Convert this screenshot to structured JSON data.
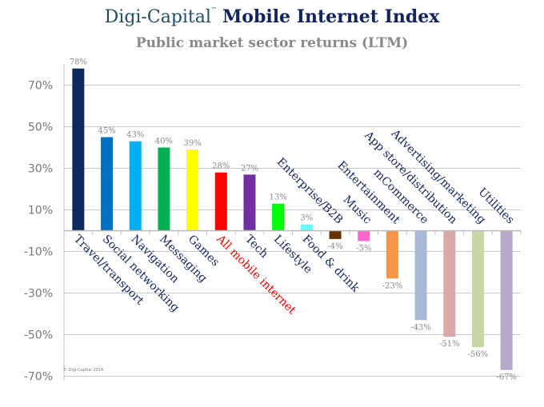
{
  "title": {
    "brand": "Digi-Capital",
    "trademark": "™",
    "rest": "Mobile Internet Index"
  },
  "subtitle": "Public market sector returns (LTM)",
  "footnote": "© Digi-Capital 2014",
  "chart_data": {
    "type": "bar",
    "title": "Digi-Capital Mobile Internet Index",
    "subtitle": "Public market sector returns (LTM)",
    "categories": [
      "Travel/transport",
      "Social networking",
      "Navigation",
      "Messaging",
      "Games",
      "All mobile internet",
      "Tech",
      "Lifestyle",
      "Food & drink",
      "Enterprise/B2B",
      "Music",
      "Entertainment",
      "mCommerce",
      "App store/distribution",
      "Advertising/marketing",
      "Utilities"
    ],
    "values": [
      78,
      45,
      43,
      40,
      39,
      28,
      27,
      13,
      3,
      -4,
      -5,
      -23,
      -43,
      -51,
      -56,
      -67
    ],
    "data_labels": [
      "78%",
      "45%",
      "43%",
      "40%",
      "39%",
      "28%",
      "27%",
      "13%",
      "3%",
      "-4%",
      "-5%",
      "-23%",
      "-43%",
      "-51%",
      "-56%",
      "-67%"
    ],
    "colors": [
      "#0d2a5e",
      "#0070c0",
      "#00b0f0",
      "#00b050",
      "#ffff00",
      "#ff0000",
      "#7030a0",
      "#00ff00",
      "#66ffff",
      "#663300",
      "#ff66cc",
      "#f79646",
      "#a9bad9",
      "#d9a9a9",
      "#c6d8a6",
      "#b7aac9"
    ],
    "label_colors": [
      "#12235e",
      "#12235e",
      "#12235e",
      "#12235e",
      "#12235e",
      "#ff0000",
      "#12235e",
      "#12235e",
      "#12235e",
      "#12235e",
      "#12235e",
      "#12235e",
      "#12235e",
      "#12235e",
      "#12235e",
      "#12235e"
    ],
    "yticks": [
      70,
      50,
      30,
      10,
      -10,
      -30,
      -50,
      -70
    ],
    "ytick_labels": [
      "70%",
      "50%",
      "30%",
      "10%",
      "-10%",
      "-30%",
      "-50%",
      "-70%"
    ],
    "ylim": [
      -70,
      80
    ],
    "grid": true,
    "xlabel": "",
    "ylabel": ""
  }
}
